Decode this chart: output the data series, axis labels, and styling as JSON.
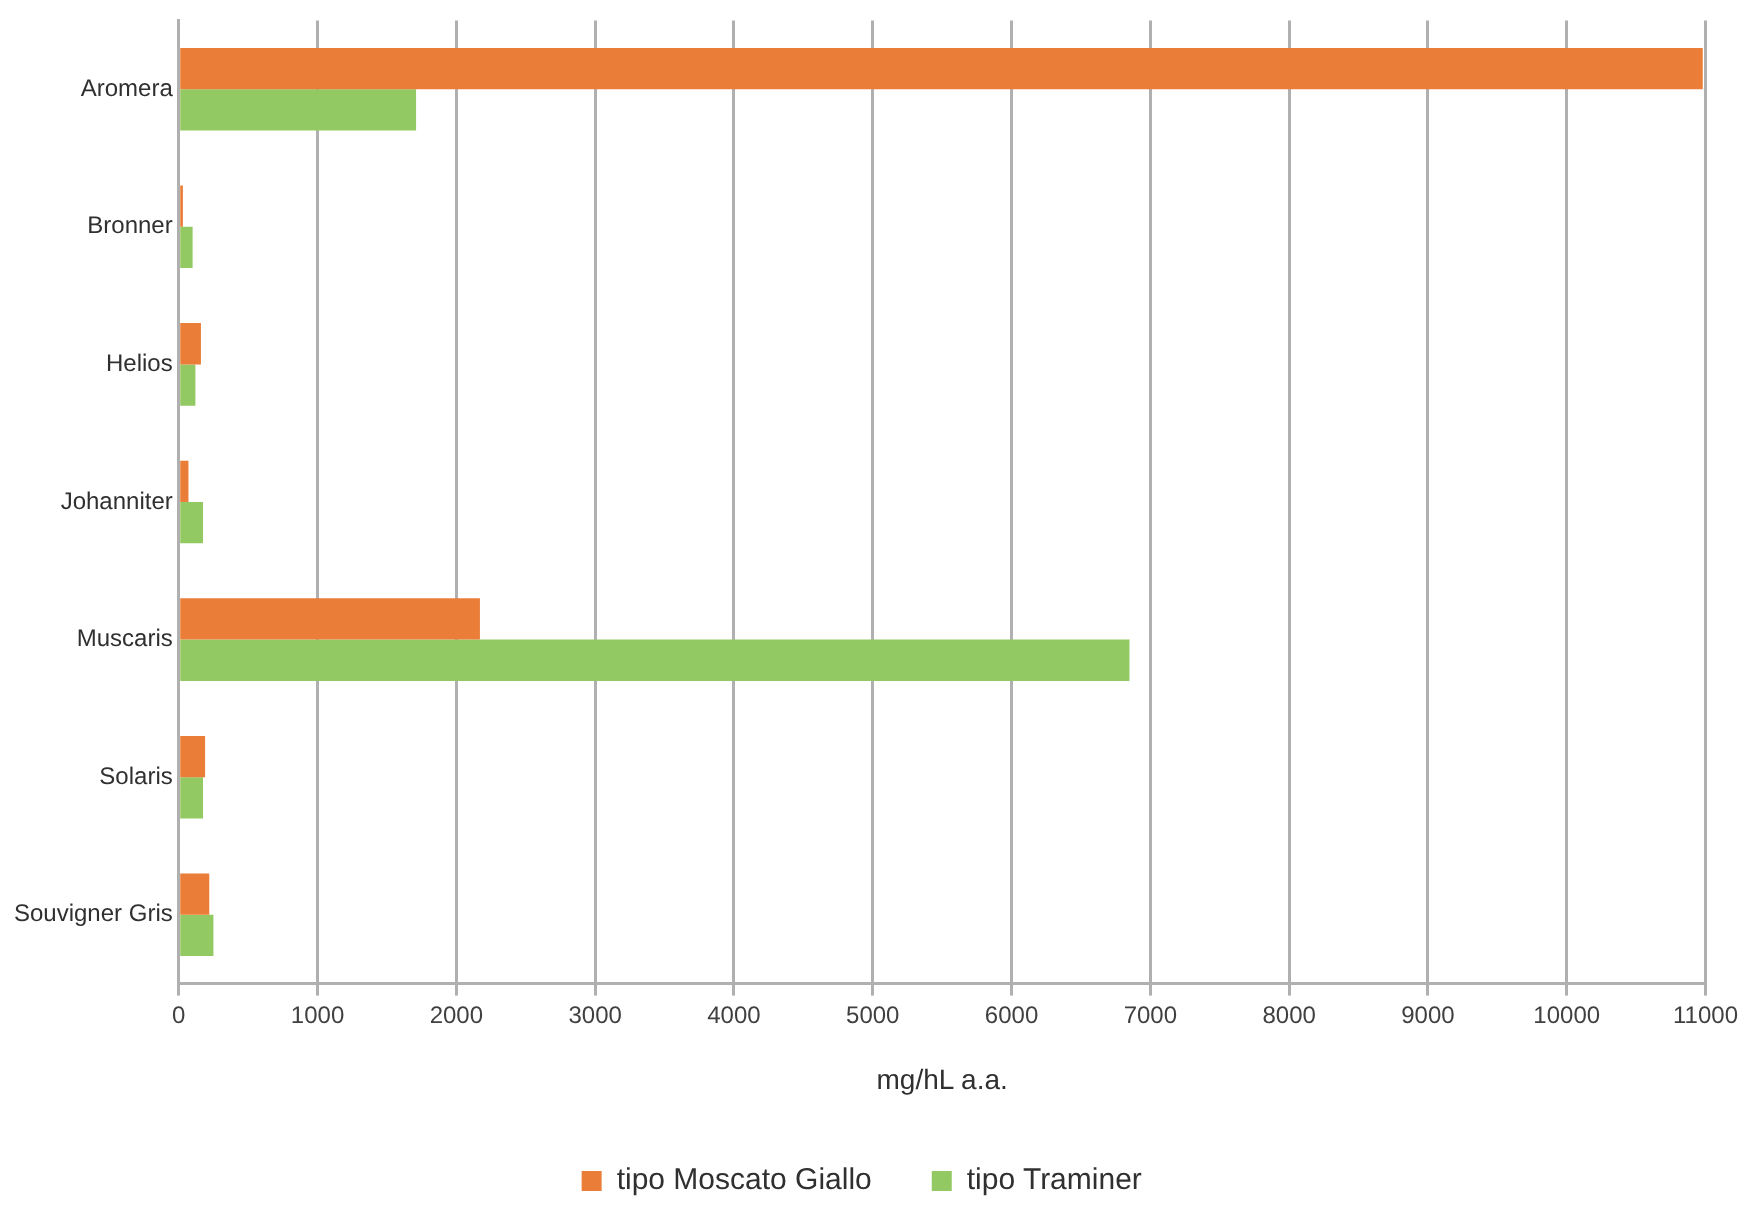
{
  "chart_data": {
    "type": "bar",
    "orientation": "horizontal",
    "xlabel": "mg/hL a.a.",
    "categories": [
      "Aromera",
      "Bronner",
      "Helios",
      "Johanniter",
      "Muscaris",
      "Solaris",
      "Souvigner Gris"
    ],
    "series": [
      {
        "name": "tipo Moscato Giallo",
        "color": "#ea7d37",
        "values": [
          10980,
          30,
          160,
          70,
          2170,
          190,
          220
        ]
      },
      {
        "name": "tipo Traminer",
        "color": "#92c962",
        "values": [
          1710,
          100,
          120,
          175,
          6850,
          175,
          250
        ]
      }
    ],
    "xlim": [
      0,
      11000
    ],
    "xticks": [
      0,
      1000,
      2000,
      3000,
      4000,
      5000,
      6000,
      7000,
      8000,
      9000,
      10000,
      11000
    ],
    "grid": "x",
    "legend": "bottom"
  }
}
